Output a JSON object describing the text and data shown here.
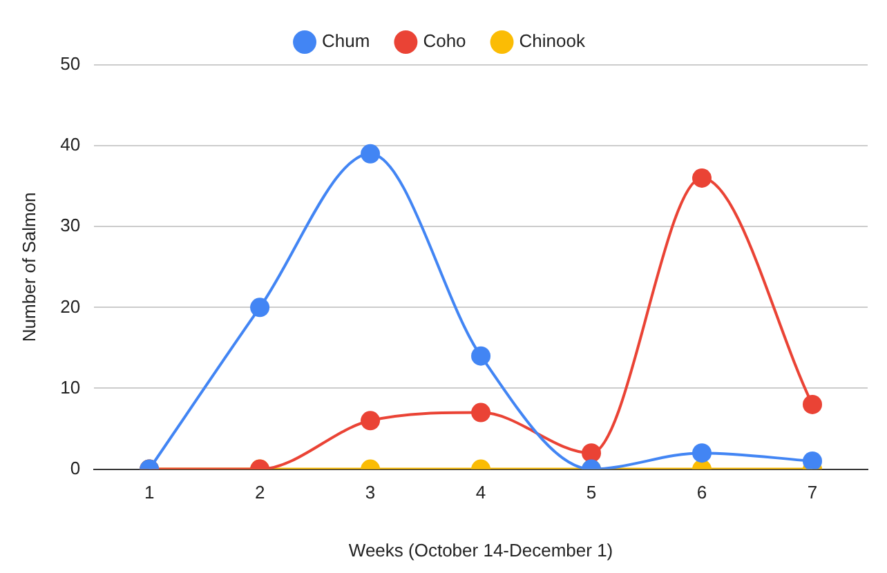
{
  "chart_data": {
    "type": "line",
    "xlabel": "Weeks (October 14-December 1)",
    "ylabel": "Number of Salmon",
    "categories": [
      "1",
      "2",
      "3",
      "4",
      "5",
      "6",
      "7"
    ],
    "series": [
      {
        "name": "Chum",
        "color": "#4285f4",
        "values": [
          0,
          20,
          39,
          14,
          0,
          2,
          1
        ]
      },
      {
        "name": "Coho",
        "color": "#ea4335",
        "values": [
          0,
          0,
          6,
          7,
          2,
          36,
          8
        ]
      },
      {
        "name": "Chinook",
        "color": "#fbbc04",
        "values": [
          0,
          0,
          0,
          0,
          0,
          0,
          0
        ]
      }
    ],
    "ylim": [
      0,
      50
    ],
    "yticks": [
      0,
      10,
      20,
      30,
      40,
      50
    ],
    "grid": "y",
    "legend": "top",
    "marker": "circle",
    "line_style": "solid"
  }
}
